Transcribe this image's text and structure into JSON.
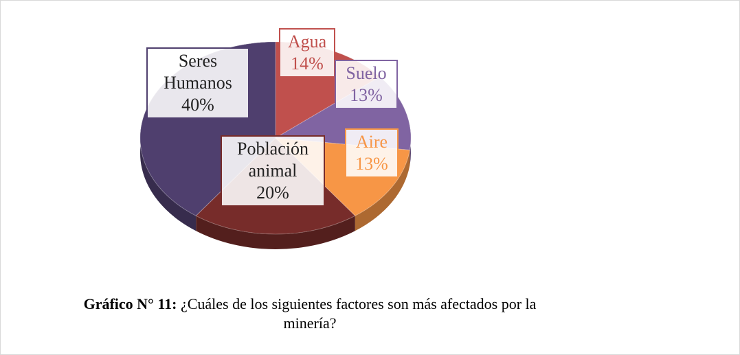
{
  "chart_data": {
    "type": "pie",
    "categories": [
      "Agua",
      "Suelo",
      "Aire",
      "Población animal",
      "Seres Humanos"
    ],
    "values": [
      14,
      13,
      13,
      20,
      40
    ],
    "value_labels": [
      "14%",
      "13%",
      "13%",
      "20%",
      "40%"
    ],
    "colors": [
      "#c0504d",
      "#8064a2",
      "#f79646",
      "#772c2a",
      "#4f3f6e"
    ],
    "caption_label": "Gráfico N° 11:",
    "caption": "¿Cuáles de los siguientes factores son más afectados por la minería?"
  }
}
